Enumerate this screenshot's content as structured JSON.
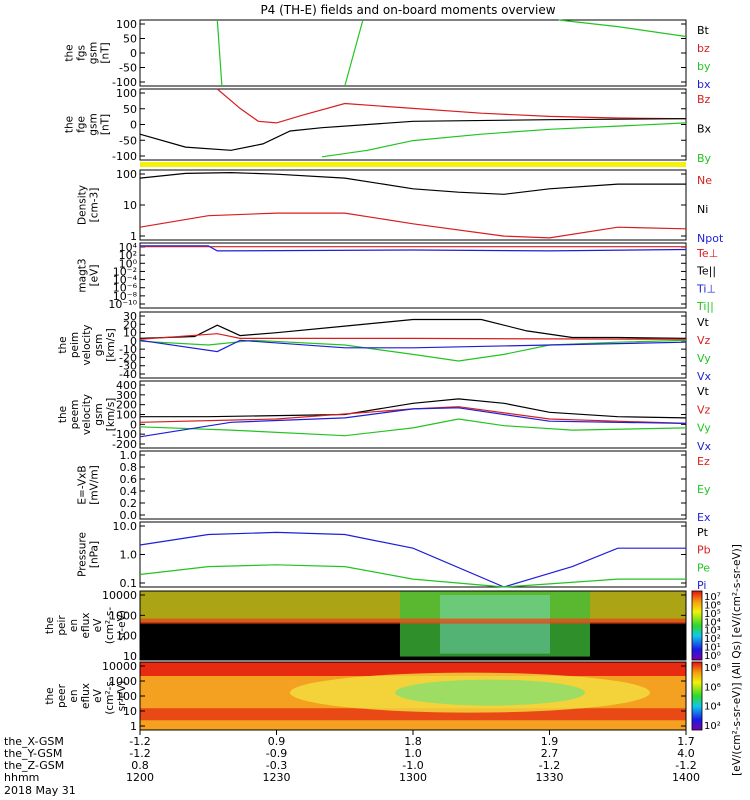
{
  "title": "P4 (TH-E) fields and on-board moments overview",
  "date_label": "2018 May 31",
  "panels": [
    {
      "id": "fgs",
      "ylabel": [
        "the",
        "fgs",
        "gsm",
        "[nT]"
      ],
      "ticks": [
        "100",
        "50",
        "0",
        "-50",
        "-100"
      ],
      "legend": [
        {
          "name": "Bt",
          "color": "#000000"
        },
        {
          "name": "bz",
          "color": "#d81e1e"
        },
        {
          "name": "by",
          "color": "#22c422"
        },
        {
          "name": "bx",
          "color": "#1e1ed8"
        }
      ]
    },
    {
      "id": "fge",
      "ylabel": [
        "the",
        "fge",
        "gsm",
        "[nT]"
      ],
      "ticks": [
        "100",
        "50",
        "0",
        "-50",
        "-100"
      ],
      "legend": [
        {
          "name": "Bz",
          "color": "#d81e1e"
        },
        {
          "name": "Bx",
          "color": "#000000"
        },
        {
          "name": "By",
          "color": "#22c422"
        }
      ]
    },
    {
      "id": "density",
      "ylabel": [
        "Density",
        "[cm-3]"
      ],
      "ticks": [
        "100",
        "10",
        "1"
      ],
      "legend": [
        {
          "name": "Ne",
          "color": "#d81e1e"
        },
        {
          "name": "Ni",
          "color": "#000000"
        },
        {
          "name": "Npot",
          "color": "#1e1ed8"
        }
      ]
    },
    {
      "id": "temp",
      "ylabel": [
        "magt3",
        "[eV]"
      ],
      "ticks": [
        "10⁴",
        "10²",
        "10⁰",
        "10⁻²",
        "10⁻⁴",
        "10⁻⁶",
        "10⁻⁸",
        "10⁻¹⁰"
      ],
      "legend": [
        {
          "name": "Te⊥",
          "color": "#d81e1e"
        },
        {
          "name": "Te||",
          "color": "#000000"
        },
        {
          "name": "Ti⊥",
          "color": "#1e1ed8"
        },
        {
          "name": "Ti||",
          "color": "#22c422"
        }
      ]
    },
    {
      "id": "peim",
      "ylabel": [
        "the",
        "peim",
        "velocity",
        "gsm",
        "[km/s]"
      ],
      "ticks": [
        "30",
        "20",
        "10",
        "0",
        "-10",
        "-20",
        "-30",
        "-40"
      ],
      "legend": [
        {
          "name": "Vt",
          "color": "#000000"
        },
        {
          "name": "Vz",
          "color": "#d81e1e"
        },
        {
          "name": "Vy",
          "color": "#22c422"
        },
        {
          "name": "Vx",
          "color": "#1e1ed8"
        }
      ]
    },
    {
      "id": "peem",
      "ylabel": [
        "the",
        "peem",
        "velocity",
        "gsm",
        "[km/s]"
      ],
      "ticks": [
        "400",
        "300",
        "200",
        "100",
        "0",
        "-100",
        "-200"
      ],
      "legend": [
        {
          "name": "Vt",
          "color": "#000000"
        },
        {
          "name": "Vz",
          "color": "#d81e1e"
        },
        {
          "name": "Vy",
          "color": "#22c422"
        },
        {
          "name": "Vx",
          "color": "#1e1ed8"
        }
      ]
    },
    {
      "id": "efield",
      "ylabel": [
        "E=-VxB",
        "[mV/m]"
      ],
      "ticks": [
        "1.0",
        "0.8",
        "0.6",
        "0.4",
        "0.2",
        "0.0"
      ],
      "legend": [
        {
          "name": "Ez",
          "color": "#d81e1e"
        },
        {
          "name": "Ey",
          "color": "#22c422"
        },
        {
          "name": "Ex",
          "color": "#1e1ed8"
        }
      ]
    },
    {
      "id": "pressure",
      "ylabel": [
        "Pressure",
        "[nPa]"
      ],
      "ticks": [
        "10.0",
        "1.0",
        "0.1"
      ],
      "legend": [
        {
          "name": "Pt",
          "color": "#000000"
        },
        {
          "name": "Pb",
          "color": "#d81e1e"
        },
        {
          "name": "Pe",
          "color": "#22c422"
        },
        {
          "name": "Pi",
          "color": "#1e1ed8"
        }
      ]
    },
    {
      "id": "peir",
      "ylabel": [
        "the",
        "peir",
        "en",
        "eflux",
        "eV",
        "(cm²-s-",
        "sr-eV)"
      ],
      "ticks": [
        "10000",
        "1000",
        "100",
        "10"
      ]
    },
    {
      "id": "peer",
      "ylabel": [
        "the",
        "peer",
        "en",
        "eflux",
        "eV",
        "(cm²-s-",
        "sr-eV)"
      ],
      "ticks": [
        "10000",
        "1000",
        "100",
        "10",
        "1"
      ]
    }
  ],
  "colorbars": [
    {
      "ticks": [
        "10⁷",
        "10⁶",
        "10⁵",
        "10⁴",
        "10³",
        "10²",
        "10¹",
        "10⁰"
      ],
      "label": "[eV/(cm²-s-sr-eV)] (All Qs)"
    },
    {
      "ticks": [
        "10⁸",
        "10⁶",
        "10⁴",
        "10²"
      ],
      "label": "[eV/(cm²-s-sr-eV)]"
    }
  ],
  "footer": {
    "row_labels": [
      "the_X-GSM",
      "the_Y-GSM",
      "the_Z-GSM",
      "hhmm"
    ],
    "columns": [
      [
        "-1.2",
        "-1.2",
        "0.8",
        "1200"
      ],
      [
        "0.9",
        "-0.9",
        "-0.3",
        "1230"
      ],
      [
        "1.8",
        "1.0",
        "-1.0",
        "1300"
      ],
      [
        "1.9",
        "2.7",
        "-1.2",
        "1330"
      ],
      [
        "1.7",
        "4.0",
        "-1.2",
        "1400"
      ]
    ]
  },
  "chart_data": {
    "type": "line",
    "title": "P4 (TH-E) fields and on-board moments overview",
    "x_axis": {
      "label": "hhmm",
      "range": [
        "1200",
        "1400"
      ],
      "ticks": [
        "1200",
        "1230",
        "1300",
        "1330",
        "1400"
      ]
    },
    "panels": [
      {
        "id": "fgs",
        "ylim": [
          -100,
          100
        ],
        "series": [
          {
            "name": "by",
            "points": [
              [
                1217,
                100
              ],
              [
                1218,
                -100
              ]
            ]
          },
          {
            "name": "by",
            "points": [
              [
                1245,
                -100
              ],
              [
                1249,
                100
              ]
            ]
          },
          {
            "name": "by",
            "points": [
              [
                1332,
                100
              ],
              [
                1345,
                80
              ],
              [
                1400,
                50
              ]
            ]
          }
        ]
      },
      {
        "id": "fge",
        "ylim": [
          -120,
          100
        ],
        "series": [
          {
            "name": "Bz",
            "points": [
              [
                1217,
                100
              ],
              [
                1222,
                40
              ],
              [
                1226,
                0
              ],
              [
                1230,
                -5
              ],
              [
                1236,
                20
              ],
              [
                1245,
                55
              ],
              [
                1300,
                40
              ],
              [
                1315,
                25
              ],
              [
                1330,
                15
              ],
              [
                1345,
                10
              ],
              [
                1400,
                8
              ]
            ]
          },
          {
            "name": "Bx",
            "points": [
              [
                1200,
                -40
              ],
              [
                1210,
                -80
              ],
              [
                1220,
                -90
              ],
              [
                1227,
                -70
              ],
              [
                1233,
                -30
              ],
              [
                1240,
                -20
              ],
              [
                1300,
                0
              ],
              [
                1330,
                5
              ],
              [
                1400,
                8
              ]
            ]
          },
          {
            "name": "By",
            "points": [
              [
                1240,
                -110
              ],
              [
                1250,
                -90
              ],
              [
                1300,
                -60
              ],
              [
                1315,
                -40
              ],
              [
                1330,
                -25
              ],
              [
                1345,
                -15
              ],
              [
                1400,
                -5
              ]
            ]
          }
        ]
      },
      {
        "id": "density",
        "ylim": [
          0.5,
          200
        ],
        "log": true,
        "series": [
          {
            "name": "Ni",
            "points": [
              [
                1200,
                100
              ],
              [
                1210,
                150
              ],
              [
                1220,
                160
              ],
              [
                1230,
                140
              ],
              [
                1245,
                100
              ],
              [
                1300,
                40
              ],
              [
                1310,
                30
              ],
              [
                1320,
                25
              ],
              [
                1330,
                40
              ],
              [
                1345,
                60
              ],
              [
                1400,
                60
              ]
            ]
          },
          {
            "name": "Ne",
            "points": [
              [
                1200,
                1.5
              ],
              [
                1215,
                4
              ],
              [
                1230,
                5
              ],
              [
                1245,
                5
              ],
              [
                1300,
                2
              ],
              [
                1320,
                0.7
              ],
              [
                1330,
                0.6
              ],
              [
                1345,
                1.5
              ],
              [
                1400,
                1.3
              ]
            ]
          }
        ]
      },
      {
        "id": "temp",
        "ylim": [
          -10,
          4
        ],
        "log_exponent": true,
        "series": [
          {
            "name": "Te⊥",
            "points": [
              [
                1200,
                3.2
              ],
              [
                1300,
                3.2
              ],
              [
                1400,
                3.2
              ]
            ]
          },
          {
            "name": "Ti⊥",
            "points": [
              [
                1200,
                3.4
              ],
              [
                1215,
                3.4
              ],
              [
                1217,
                2.3
              ],
              [
                1300,
                2.5
              ],
              [
                1330,
                2.3
              ],
              [
                1400,
                2.6
              ]
            ]
          }
        ]
      },
      {
        "id": "peim",
        "ylim": [
          -40,
          30
        ],
        "series": [
          {
            "name": "Vt",
            "points": [
              [
                1200,
                2
              ],
              [
                1212,
                4
              ],
              [
                1217,
                16
              ],
              [
                1222,
                5
              ],
              [
                1230,
                8
              ],
              [
                1245,
                15
              ],
              [
                1300,
                22
              ],
              [
                1315,
                22
              ],
              [
                1325,
                10
              ],
              [
                1335,
                3
              ],
              [
                1345,
                3
              ],
              [
                1400,
                2
              ]
            ]
          },
          {
            "name": "Vz",
            "points": [
              [
                1200,
                1
              ],
              [
                1217,
                7
              ],
              [
                1222,
                2
              ],
              [
                1300,
                2
              ],
              [
                1400,
                1
              ]
            ]
          },
          {
            "name": "Vy",
            "points": [
              [
                1200,
                -1
              ],
              [
                1215,
                -5
              ],
              [
                1225,
                0
              ],
              [
                1245,
                -5
              ],
              [
                1300,
                -15
              ],
              [
                1310,
                -22
              ],
              [
                1320,
                -15
              ],
              [
                1330,
                -5
              ],
              [
                1345,
                -2
              ],
              [
                1400,
                0
              ]
            ]
          },
          {
            "name": "Vx",
            "points": [
              [
                1200,
                0
              ],
              [
                1217,
                -12
              ],
              [
                1222,
                0
              ],
              [
                1245,
                -8
              ],
              [
                1300,
                -8
              ],
              [
                1330,
                -5
              ],
              [
                1400,
                -2
              ]
            ]
          }
        ]
      },
      {
        "id": "peem",
        "ylim": [
          -200,
          400
        ],
        "series": [
          {
            "name": "Vt",
            "points": [
              [
                1200,
                80
              ],
              [
                1215,
                80
              ],
              [
                1230,
                90
              ],
              [
                1245,
                100
              ],
              [
                1300,
                200
              ],
              [
                1310,
                240
              ],
              [
                1320,
                200
              ],
              [
                1330,
                120
              ],
              [
                1345,
                80
              ],
              [
                1400,
                70
              ]
            ]
          },
          {
            "name": "Vz",
            "points": [
              [
                1200,
                30
              ],
              [
                1230,
                60
              ],
              [
                1300,
                150
              ],
              [
                1310,
                170
              ],
              [
                1330,
                60
              ],
              [
                1400,
                20
              ]
            ]
          },
          {
            "name": "Vy",
            "points": [
              [
                1200,
                -10
              ],
              [
                1220,
                -40
              ],
              [
                1245,
                -90
              ],
              [
                1300,
                -20
              ],
              [
                1310,
                60
              ],
              [
                1320,
                0
              ],
              [
                1335,
                -40
              ],
              [
                1400,
                -20
              ]
            ]
          },
          {
            "name": "Vx",
            "points": [
              [
                1200,
                -100
              ],
              [
                1220,
                30
              ],
              [
                1245,
                70
              ],
              [
                1300,
                150
              ],
              [
                1310,
                160
              ],
              [
                1330,
                40
              ],
              [
                1400,
                20
              ]
            ]
          }
        ]
      },
      {
        "id": "efield",
        "ylim": [
          0,
          1
        ],
        "series": []
      },
      {
        "id": "pressure",
        "ylim": [
          0.05,
          15
        ],
        "log": true,
        "series": [
          {
            "name": "Pi",
            "points": [
              [
                1200,
                2
              ],
              [
                1215,
                5
              ],
              [
                1230,
                6
              ],
              [
                1245,
                5
              ],
              [
                1300,
                1.5
              ],
              [
                1320,
                0.05
              ],
              [
                1335,
                0.3
              ],
              [
                1345,
                1.5
              ],
              [
                1400,
                1.5
              ]
            ]
          },
          {
            "name": "Pe",
            "points": [
              [
                1200,
                0.15
              ],
              [
                1215,
                0.3
              ],
              [
                1230,
                0.35
              ],
              [
                1245,
                0.3
              ],
              [
                1300,
                0.1
              ],
              [
                1320,
                0.05
              ],
              [
                1345,
                0.1
              ],
              [
                1400,
                0.1
              ]
            ]
          }
        ]
      }
    ]
  }
}
